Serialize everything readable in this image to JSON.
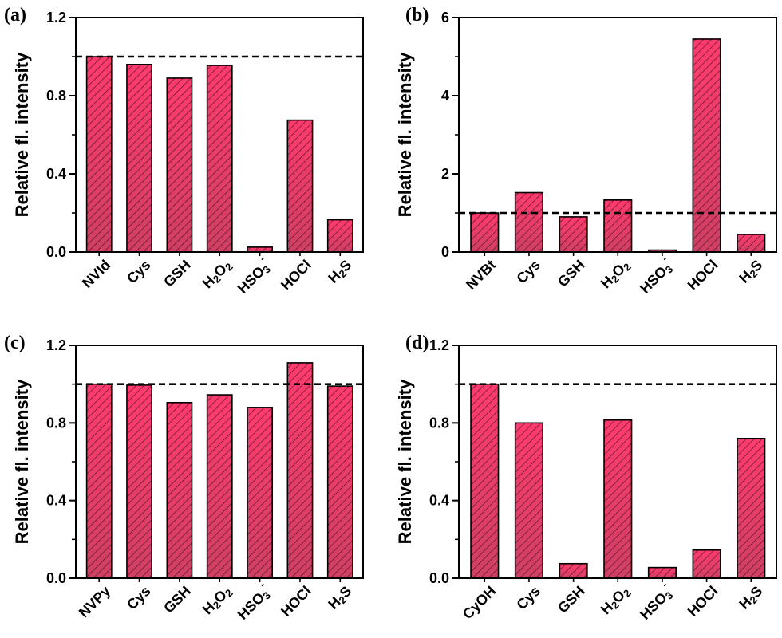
{
  "colors": {
    "bar_top": "#ff3b6e",
    "bar_bottom": "#cf3f64",
    "hatch": "#3a0b1a",
    "axis": "#000000"
  },
  "chart_data": [
    {
      "panel": "(a)",
      "type": "bar",
      "ylabel": "Relative fl. intensity",
      "ylim": [
        0,
        1.2
      ],
      "yticks": [
        0.0,
        0.4,
        0.8,
        1.2
      ],
      "ytick_labels": [
        "0.0",
        "0.4",
        "0.8",
        "1.2"
      ],
      "reference_line": 1.0,
      "categories": [
        {
          "base": "NVId",
          "sub": "",
          "mid": "",
          "sup": ""
        },
        {
          "base": "Cys",
          "sub": "",
          "mid": "",
          "sup": ""
        },
        {
          "base": "GSH",
          "sub": "",
          "mid": "",
          "sup": ""
        },
        {
          "base": "H",
          "sub": "2",
          "mid": "O",
          "sub2": "2",
          "sup": ""
        },
        {
          "base": "HSO",
          "sub": "3",
          "mid": "",
          "sup": "-"
        },
        {
          "base": "HOCl",
          "sub": "",
          "mid": "",
          "sup": ""
        },
        {
          "base": "H",
          "sub": "2",
          "mid": "S",
          "sup": ""
        }
      ],
      "values": [
        1.0,
        0.96,
        0.89,
        0.955,
        0.025,
        0.675,
        0.165
      ]
    },
    {
      "panel": "(b)",
      "type": "bar",
      "ylabel": "Relative fl. intensity",
      "ylim": [
        0,
        6
      ],
      "yticks": [
        0,
        2,
        4,
        6
      ],
      "ytick_labels": [
        "0",
        "2",
        "4",
        "6"
      ],
      "reference_line": 1.0,
      "categories": [
        {
          "base": "NVBt",
          "sub": "",
          "mid": "",
          "sup": ""
        },
        {
          "base": "Cys",
          "sub": "",
          "mid": "",
          "sup": ""
        },
        {
          "base": "GSH",
          "sub": "",
          "mid": "",
          "sup": ""
        },
        {
          "base": "H",
          "sub": "2",
          "mid": "O",
          "sub2": "2",
          "sup": ""
        },
        {
          "base": "HSO",
          "sub": "3",
          "mid": "",
          "sup": "-"
        },
        {
          "base": "HOCl",
          "sub": "",
          "mid": "",
          "sup": ""
        },
        {
          "base": "H",
          "sub": "2",
          "mid": "S",
          "sup": ""
        }
      ],
      "values": [
        1.0,
        1.52,
        0.9,
        1.33,
        0.05,
        5.45,
        0.45
      ]
    },
    {
      "panel": "(c)",
      "type": "bar",
      "ylabel": "Relative fl. intensity",
      "ylim": [
        0,
        1.2
      ],
      "yticks": [
        0.0,
        0.4,
        0.8,
        1.2
      ],
      "ytick_labels": [
        "0.0",
        "0.4",
        "0.8",
        "1.2"
      ],
      "reference_line": 1.0,
      "categories": [
        {
          "base": "NVPy",
          "sub": "",
          "mid": "",
          "sup": ""
        },
        {
          "base": "Cys",
          "sub": "",
          "mid": "",
          "sup": ""
        },
        {
          "base": "GSH",
          "sub": "",
          "mid": "",
          "sup": ""
        },
        {
          "base": "H",
          "sub": "2",
          "mid": "O",
          "sub2": "2",
          "sup": ""
        },
        {
          "base": "HSO",
          "sub": "3",
          "mid": "",
          "sup": "-"
        },
        {
          "base": "HOCl",
          "sub": "",
          "mid": "",
          "sup": ""
        },
        {
          "base": "H",
          "sub": "2",
          "mid": "S",
          "sup": ""
        }
      ],
      "values": [
        1.0,
        0.995,
        0.905,
        0.945,
        0.88,
        1.11,
        0.99
      ]
    },
    {
      "panel": "(d)",
      "type": "bar",
      "ylabel": "Relative fl. intensity",
      "ylim": [
        0,
        1.2
      ],
      "yticks": [
        0.0,
        0.4,
        0.8,
        1.2
      ],
      "ytick_labels": [
        "0.0",
        "0.4",
        "0.8",
        "1.2"
      ],
      "reference_line": 1.0,
      "categories": [
        {
          "base": "CyOH",
          "sub": "",
          "mid": "",
          "sup": ""
        },
        {
          "base": "Cys",
          "sub": "",
          "mid": "",
          "sup": ""
        },
        {
          "base": "GSH",
          "sub": "",
          "mid": "",
          "sup": ""
        },
        {
          "base": "H",
          "sub": "2",
          "mid": "O",
          "sub2": "2",
          "sup": ""
        },
        {
          "base": "HSO",
          "sub": "3",
          "mid": "",
          "sup": "-"
        },
        {
          "base": "HOCl",
          "sub": "",
          "mid": "",
          "sup": ""
        },
        {
          "base": "H",
          "sub": "2",
          "mid": "S",
          "sup": ""
        }
      ],
      "values": [
        1.0,
        0.8,
        0.075,
        0.815,
        0.055,
        0.145,
        0.72
      ]
    }
  ]
}
